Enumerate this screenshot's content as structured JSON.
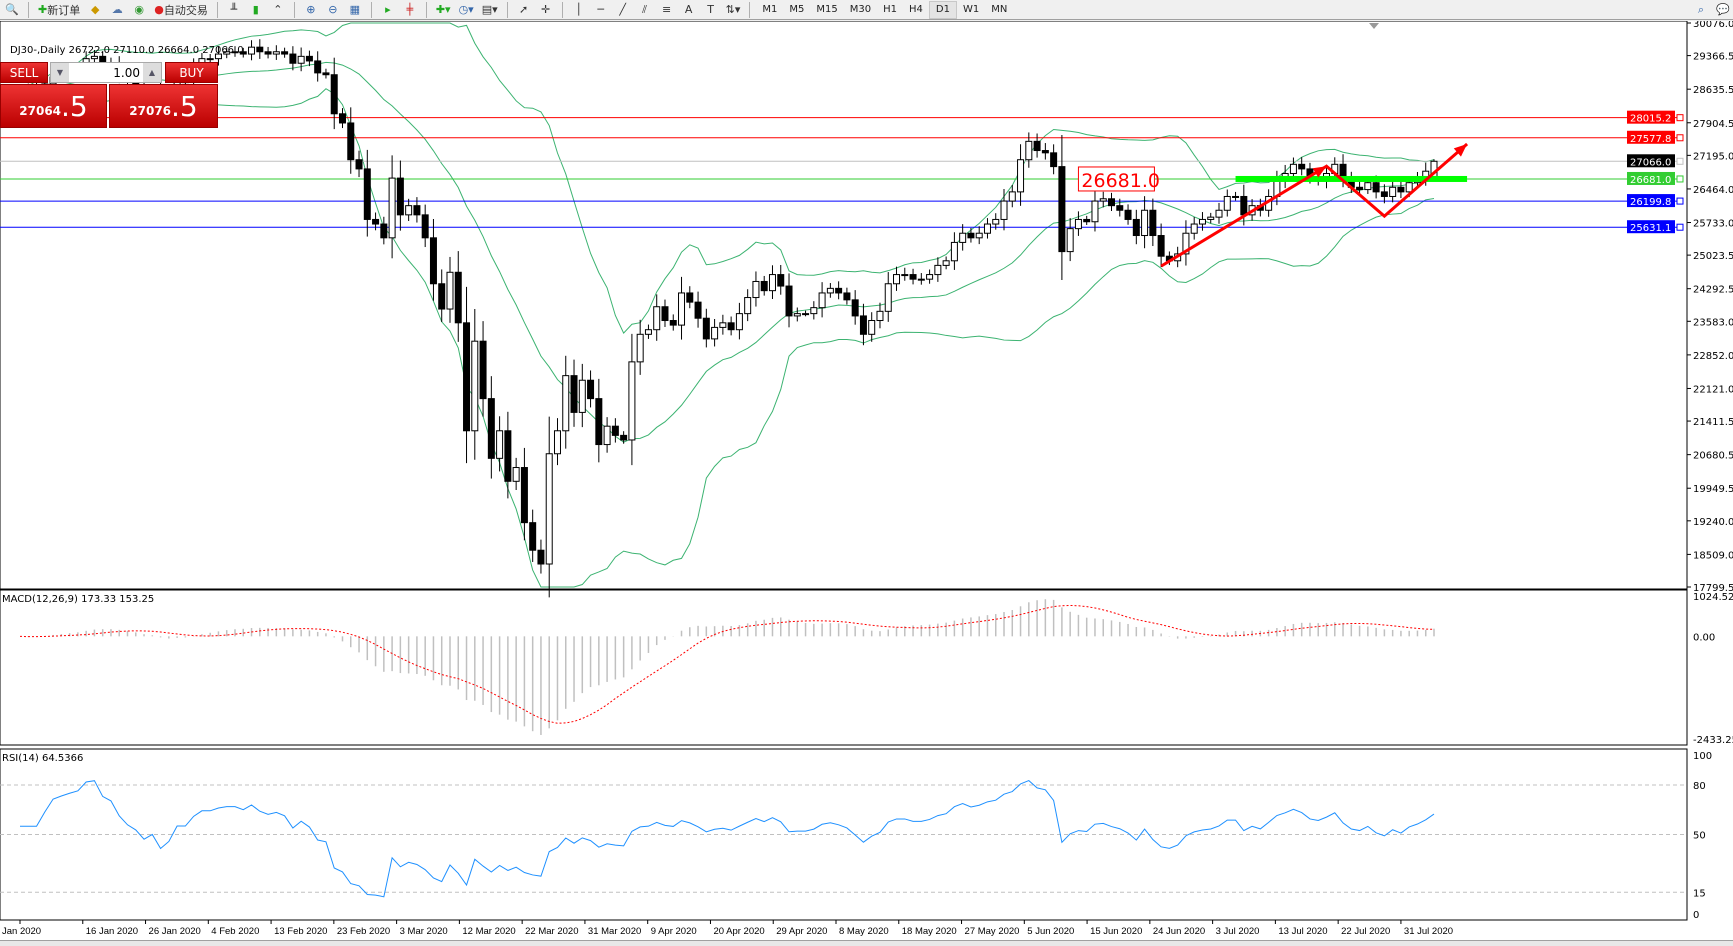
{
  "toolbar": {
    "new_order_label": "新订单",
    "auto_trading_label": "自动交易",
    "timeframes": [
      "M1",
      "M5",
      "M15",
      "M30",
      "H1",
      "H4",
      "D1",
      "W1",
      "MN"
    ],
    "active_timeframe": "D1"
  },
  "chart": {
    "title": "DJ30-,Daily  26722.0 27110.0 26664.0 27066.0",
    "symbol": "DJ30-",
    "period": "Daily",
    "last_bar": {
      "open": 26722.0,
      "high": 27110.0,
      "low": 26664.0,
      "close": 27066.0
    },
    "colors": {
      "bull_body": "#ffffff",
      "bear_body": "#000000",
      "bands": "#3cb371",
      "macd_hist": "#c0c0c0",
      "macd_signal": "#ff0000",
      "rsi": "#1e90ff",
      "annotation": "#ff0000",
      "support": "#00ff00"
    }
  },
  "trade_panel": {
    "sell_label": "SELL",
    "buy_label": "BUY",
    "lot": "1.00",
    "sell_main": "27064",
    "sell_frac": ".5",
    "buy_main": "27076",
    "buy_frac": ".5"
  },
  "price_axis": {
    "ticks": [
      "30076.0",
      "29366.5",
      "28635.5",
      "27904.5",
      "27195.0",
      "26464.0",
      "25733.0",
      "25023.5",
      "24292.5",
      "23583.0",
      "22852.0",
      "22121.0",
      "21411.5",
      "20680.5",
      "19949.5",
      "19240.0",
      "18509.0",
      "17799.5"
    ],
    "range": [
      17799.5,
      30076.0
    ]
  },
  "levels": [
    {
      "price": 28015.2,
      "label": "28015.2",
      "color": "#ff0000"
    },
    {
      "price": 27577.8,
      "label": "27577.8",
      "color": "#ff0000"
    },
    {
      "price": 27066.0,
      "label": "27066.0",
      "color": "#c0c0c0",
      "tag": "#000000"
    },
    {
      "price": 26681.0,
      "label": "26681.0",
      "color": "#32cd32"
    },
    {
      "price": 26199.8,
      "label": "26199.8",
      "color": "#0000ff"
    },
    {
      "price": 25631.1,
      "label": "25631.1",
      "color": "#0000ff"
    }
  ],
  "annotation_label": "26681.0",
  "macd": {
    "title": "MACD(12,26,9) 173.33 153.25",
    "ticks": [
      "1024.52",
      "0.00",
      "-2433.25"
    ],
    "range": [
      -2433.25,
      1024.52
    ]
  },
  "rsi": {
    "title": "RSI(14) 64.5366",
    "ticks": [
      "100",
      "80",
      "50",
      "15",
      "0"
    ],
    "levels": [
      80,
      50,
      15
    ]
  },
  "chart_data": {
    "type": "candlestick",
    "segments": [
      {
        "label": "Jan 2020",
        "closes": [
          28600,
          28400,
          28700,
          28750,
          28900,
          28950,
          29000,
          29050
        ]
      },
      {
        "label": "16 Jan 2020",
        "closes": [
          29300,
          29350,
          29200,
          29150,
          28950,
          28800,
          28700,
          28500
        ]
      },
      {
        "label": "26 Jan 2020",
        "closes": [
          28600,
          28250,
          28400,
          28800,
          28800,
          29100,
          29300
        ]
      },
      {
        "label": "4 Feb 2020",
        "closes": [
          29300,
          29400,
          29450,
          29450,
          29400,
          29550,
          29450,
          29400
        ]
      },
      {
        "label": "13 Feb 2020",
        "closes": [
          29450,
          29400,
          29200,
          29350,
          29250,
          28990,
          28950
        ]
      },
      {
        "label": "23 Feb 2020",
        "closes": [
          28100,
          27900,
          27100,
          26900,
          25800,
          25700,
          25400
        ]
      },
      {
        "label": "3 Mar 2020",
        "closes": [
          26700,
          25900,
          26100,
          25900,
          25400,
          24400
        ]
      },
      {
        "label": "12 Mar 2020",
        "closes": [
          23850,
          24650,
          23550,
          21200,
          23150,
          21900,
          20600,
          21200
        ]
      },
      {
        "label": "22 Mar 2020",
        "closes": [
          20100,
          20400,
          19200,
          18600,
          18300,
          20700,
          21200,
          22400
        ]
      },
      {
        "label": "31 Mar 2020",
        "closes": [
          21600,
          22300,
          21900,
          20900,
          21300,
          21100,
          21000,
          22700
        ]
      },
      {
        "label": "9 Apr 2020",
        "closes": [
          23300,
          23400,
          23900,
          23600,
          23500,
          24200,
          24000,
          23650
        ]
      },
      {
        "label": "20 Apr 2020",
        "closes": [
          23200,
          23450,
          23550,
          23400,
          23750,
          24100,
          24450,
          24250
        ]
      },
      {
        "label": "29 Apr 2020",
        "closes": [
          24600,
          24350,
          23700,
          23750,
          23750,
          23880,
          24200,
          24300,
          24200
        ]
      },
      {
        "label": "8 May 2020",
        "closes": [
          24050,
          23700,
          23300,
          23600,
          23800,
          24400,
          24600
        ]
      },
      {
        "label": "18 May 2020",
        "closes": [
          24600,
          24500,
          24500,
          24600,
          24800,
          24900,
          25300
        ]
      },
      {
        "label": "27 May 2020",
        "closes": [
          25500,
          25400,
          25500,
          25700,
          25800,
          26200,
          26400,
          27100
        ]
      },
      {
        "label": "5 Jun 2020",
        "closes": [
          27500,
          27300,
          27250,
          26950,
          25100,
          25600,
          25800
        ]
      },
      {
        "label": "15 Jun 2020",
        "closes": [
          25750,
          26200,
          26250,
          26100,
          26000,
          25800,
          25450,
          26000
        ]
      },
      {
        "label": "24 Jun 2020",
        "closes": [
          25450,
          25000,
          24900,
          25050,
          25500,
          25700,
          25800
        ]
      },
      {
        "label": "3 Jul 2020",
        "closes": [
          25850,
          26000,
          26300,
          26300,
          25900,
          26100,
          26000,
          26300
        ]
      },
      {
        "label": "13 Jul 2020",
        "closes": [
          26650,
          26800,
          27000,
          26900,
          26700,
          26650,
          26800
        ]
      },
      {
        "label": "22 Jul 2020",
        "closes": [
          27000,
          26700,
          26500,
          26450,
          26600,
          26400,
          26300,
          26500
        ]
      },
      {
        "label": "31 Jul 2020",
        "closes": [
          26400,
          26600,
          26700,
          26850,
          27066
        ]
      }
    ],
    "indicators": [
      "Bollinger Bands(20,2)",
      "MACD(12,26,9)",
      "RSI(14)"
    ]
  }
}
